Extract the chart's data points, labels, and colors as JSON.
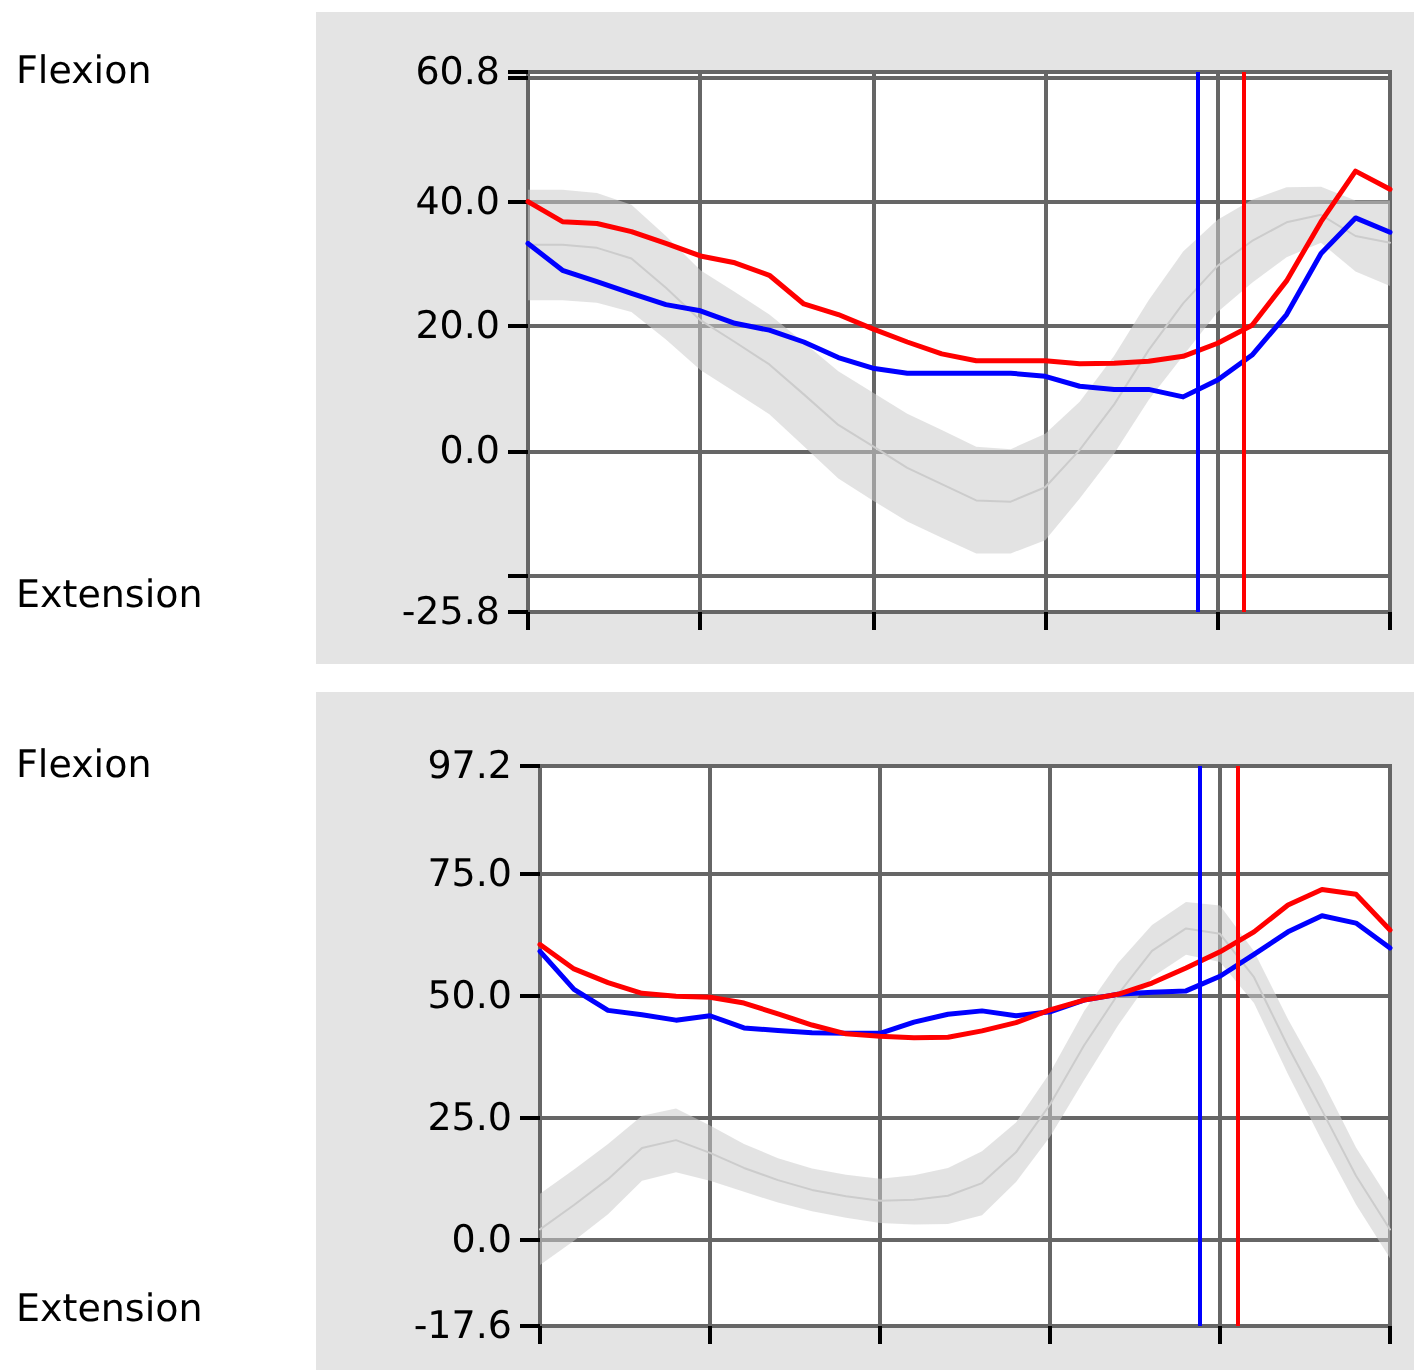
{
  "chart_data": [
    {
      "type": "line",
      "annotations": [
        "Flexion",
        "Extension"
      ],
      "categories": [
        null,
        null,
        null,
        null,
        null,
        null,
        null,
        null,
        null,
        null,
        null,
        null,
        null,
        null,
        null,
        null,
        null,
        null,
        null,
        null,
        null,
        null,
        null,
        null,
        null,
        null
      ],
      "ylim": [
        -25.8,
        60.8
      ],
      "yticks": [
        -25.8,
        {
          "value": -20,
          "label": null
        },
        {
          "value": 0,
          "label": "0.0"
        },
        {
          "value": 20,
          "label": "20.0"
        },
        {
          "value": 40,
          "label": "40.0"
        },
        {
          "value": 60,
          "label": null
        },
        60.8
      ],
      "grid": true,
      "marker": "none",
      "line_style": "solid",
      "series": [
        {
          "color": "#cccccc",
          "values": [
            33.1,
            33.1,
            32.6,
            30.9,
            26.2,
            21,
            17.5,
            13.9,
            9.1,
            4.2,
            0.8,
            -2.7,
            -5.3,
            -7.9,
            -8.1,
            -5.8,
            0.2,
            7.5,
            16.2,
            23.7,
            29.7,
            33.7,
            36.7,
            37.9,
            34.5,
            33.4
          ],
          "upper": [
            41.9,
            41.9,
            41.4,
            39.5,
            34.5,
            29,
            25.5,
            21.9,
            17.4,
            12.8,
            9.4,
            6,
            3.4,
            0.7,
            0.3,
            2.8,
            7.9,
            15.3,
            24.2,
            32,
            37.1,
            40.3,
            42.3,
            42.4,
            40.2,
            40.2
          ],
          "lower": [
            24.2,
            24.2,
            23.8,
            22.3,
            17.9,
            13,
            9.5,
            5.9,
            0.8,
            -4.4,
            -7.9,
            -11.3,
            -13.9,
            -16.4,
            -16.4,
            -14.3,
            -7.6,
            -0.4,
            8.2,
            15.3,
            22.3,
            27,
            31.1,
            33.4,
            28.8,
            26.5
          ]
        },
        {
          "color": "#0000ff",
          "values": [
            33.3,
            29,
            27.2,
            25.3,
            23.5,
            22.5,
            20.5,
            19.4,
            17.5,
            15,
            13.3,
            12.5,
            12.5,
            12.5,
            12.5,
            12,
            10.4,
            9.9,
            9.9,
            8.7,
            11.4,
            15.4,
            21.9,
            31.7,
            37.4,
            35.1
          ]
        },
        {
          "color": "#ff0000",
          "values": [
            40,
            36.8,
            36.5,
            35.2,
            33.3,
            31.3,
            30.2,
            28.2,
            23.6,
            21.9,
            19.6,
            17.5,
            15.6,
            14.5,
            14.5,
            14.5,
            14,
            14.1,
            14.4,
            15.2,
            17.3,
            20.2,
            27.3,
            36.8,
            44.9,
            42
          ]
        }
      ]
    },
    {
      "type": "line",
      "annotations": [
        "Flexion",
        "Extension"
      ],
      "categories": [
        null,
        null,
        null,
        null,
        null,
        null,
        null,
        null,
        null,
        null,
        null,
        null,
        null,
        null,
        null,
        null,
        null,
        null,
        null,
        null,
        null,
        null,
        null,
        null,
        null,
        null
      ],
      "ylim": [
        -17.6,
        97.2
      ],
      "yticks": [
        -17.6,
        {
          "value": 0,
          "label": "0.0"
        },
        {
          "value": 25,
          "label": "25.0"
        },
        {
          "value": 50,
          "label": "50.0"
        },
        {
          "value": 75,
          "label": "75.0"
        },
        97.2
      ],
      "grid": true,
      "marker": "none",
      "line_style": "solid",
      "series": [
        {
          "color": "#cccccc",
          "values": [
            2.2,
            7.2,
            12.5,
            18.9,
            20.5,
            17.9,
            14.8,
            12.3,
            10.3,
            9,
            8.1,
            8.3,
            9.1,
            11.7,
            18,
            27.8,
            39.9,
            50.4,
            59.3,
            63.9,
            62.8,
            53.9,
            39.7,
            26.6,
            13.2,
            2.2
          ],
          "upper": [
            9.5,
            14.5,
            19.7,
            25.5,
            27,
            23.5,
            19.7,
            16.8,
            14.7,
            13.4,
            12.6,
            13.3,
            14.8,
            18.2,
            24.1,
            34.3,
            46.9,
            56.8,
            64.6,
            69.3,
            68.6,
            59.2,
            45.3,
            32.8,
            19,
            8
          ],
          "lower": [
            -5.1,
            -0.1,
            5.3,
            12.2,
            13.9,
            12.2,
            9.9,
            7.7,
            5.9,
            4.6,
            3.5,
            3.2,
            3.3,
            5.1,
            11.9,
            21.2,
            32.8,
            44,
            53.9,
            58.5,
            57,
            48.6,
            34,
            20.3,
            7.3,
            -3.7
          ]
        },
        {
          "color": "#0000ff",
          "values": [
            59.2,
            51.4,
            47.1,
            46.2,
            45.1,
            46,
            43.5,
            43,
            42.5,
            42.4,
            42.4,
            44.7,
            46.3,
            47,
            46,
            46.8,
            49.2,
            50.4,
            50.8,
            51.1,
            54.1,
            58.6,
            63.2,
            66.5,
            65,
            59.9
          ]
        },
        {
          "color": "#ff0000",
          "values": [
            60.6,
            55.6,
            52.8,
            50.6,
            50,
            49.8,
            48.6,
            46.4,
            44.1,
            42.3,
            41.8,
            41.5,
            41.6,
            42.9,
            44.6,
            47.2,
            49.2,
            50.4,
            52.7,
            55.8,
            59.1,
            63.2,
            68.7,
            71.9,
            70.9,
            63.6
          ]
        }
      ]
    }
  ]
}
